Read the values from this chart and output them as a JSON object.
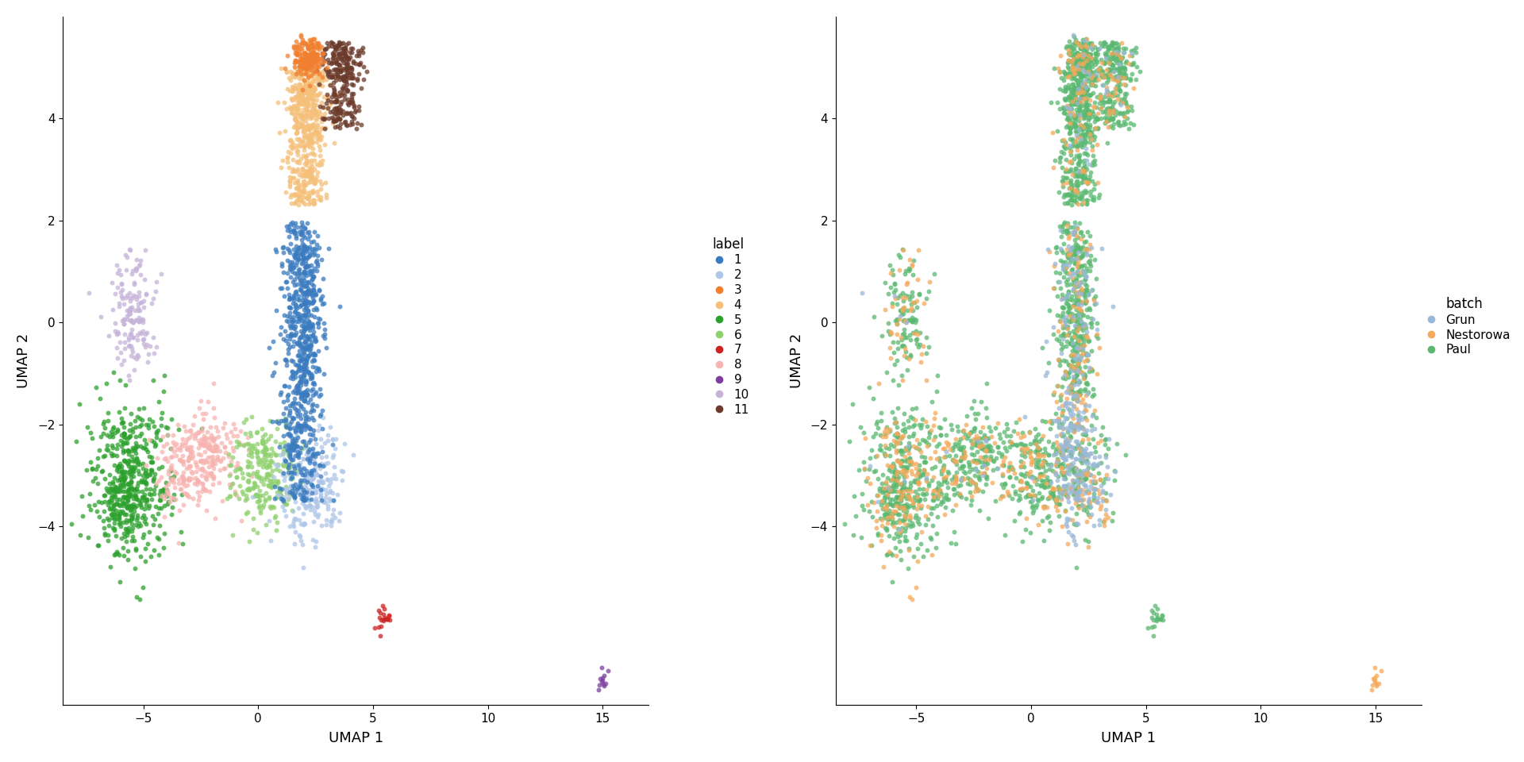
{
  "label_colors": {
    "1": "#3a7bbf",
    "2": "#aec6e8",
    "3": "#f08030",
    "4": "#f5c07a",
    "5": "#2ca02c",
    "6": "#8fd16e",
    "7": "#cc2222",
    "8": "#f7b3b0",
    "9": "#7b3f9e",
    "10": "#c5b3d8",
    "11": "#6b3a2a"
  },
  "batch_colors": {
    "Grun": "#9ab8d8",
    "Nestorowa": "#f5a95a",
    "Paul": "#5ab870"
  },
  "xlabel": "UMAP 1",
  "ylabel": "UMAP 2",
  "legend1_title": "label",
  "legend2_title": "batch",
  "point_size": 18,
  "alpha": 0.75,
  "figsize": [
    19.2,
    9.6
  ],
  "dpi": 100,
  "xlim": [
    -8.5,
    17
  ],
  "ylim": [
    -7.5,
    6
  ]
}
